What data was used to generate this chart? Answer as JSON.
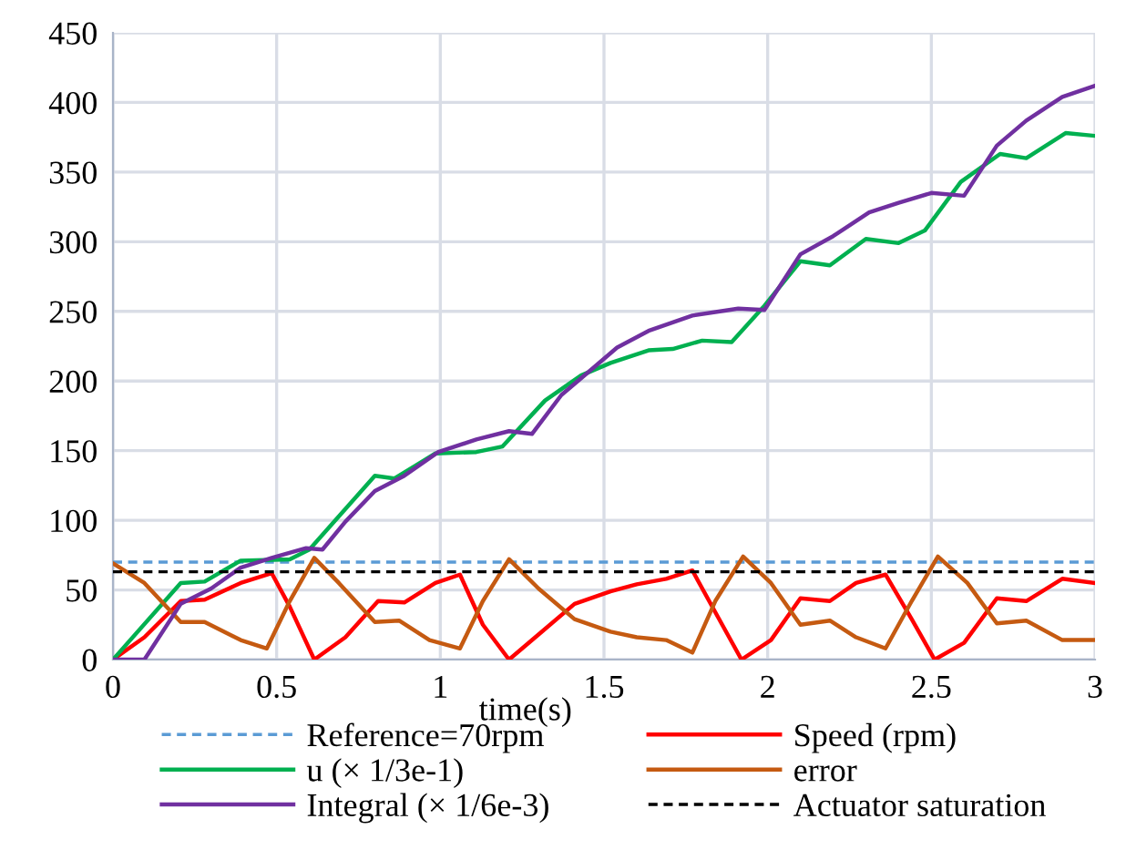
{
  "chart_data": {
    "type": "line",
    "xlabel": "time(s)",
    "xlim": [
      0,
      3
    ],
    "xticks": [
      0,
      0.5,
      1,
      1.5,
      2,
      2.5,
      3
    ],
    "ylim": [
      0,
      450
    ],
    "yticks": [
      0,
      50,
      100,
      150,
      200,
      250,
      300,
      350,
      400,
      450
    ],
    "grid": true,
    "legend": "bottom",
    "marker": "none",
    "series": [
      {
        "name": "Reference=70rpm",
        "color": "#5b9bd5",
        "line_style": "dashed",
        "x": [
          0,
          3
        ],
        "values": [
          70,
          70
        ]
      },
      {
        "name": "Speed (rpm)",
        "color": "#ff0000",
        "line_style": "solid",
        "x": [
          0,
          0.096,
          0.207,
          0.28,
          0.39,
          0.485,
          0.54,
          0.615,
          0.71,
          0.81,
          0.89,
          0.985,
          1.06,
          1.13,
          1.21,
          1.3,
          1.41,
          1.52,
          1.6,
          1.69,
          1.77,
          1.84,
          1.92,
          2.01,
          2.1,
          2.19,
          2.27,
          2.36,
          2.44,
          2.51,
          2.6,
          2.7,
          2.79,
          2.9,
          3.0
        ],
        "values": [
          0,
          16,
          42,
          43,
          55,
          62,
          38,
          0,
          16,
          42,
          41,
          55,
          61,
          25,
          0,
          18,
          40,
          49,
          54,
          58,
          64,
          34,
          0,
          14,
          44,
          42,
          55,
          61,
          29,
          0,
          12,
          44,
          42,
          58,
          55
        ]
      },
      {
        "name": "u (× 1/3e-1)",
        "color": "#00b050",
        "line_style": "solid",
        "x": [
          0,
          0.207,
          0.28,
          0.39,
          0.54,
          0.6,
          0.8,
          0.86,
          0.985,
          1.11,
          1.19,
          1.32,
          1.43,
          1.52,
          1.636,
          1.71,
          1.8,
          1.89,
          1.99,
          2.1,
          2.19,
          2.3,
          2.4,
          2.48,
          2.59,
          2.71,
          2.79,
          2.91,
          3.0
        ],
        "values": [
          0,
          55,
          56,
          71,
          72,
          79,
          132,
          130,
          148,
          149,
          153,
          186,
          204,
          213,
          222,
          223,
          229,
          228,
          254,
          286,
          283,
          302,
          299,
          308,
          343,
          363,
          360,
          378,
          376
        ]
      },
      {
        "name": "error",
        "color": "#c55a11",
        "line_style": "solid",
        "x": [
          0,
          0.096,
          0.207,
          0.28,
          0.39,
          0.47,
          0.54,
          0.615,
          0.69,
          0.8,
          0.874,
          0.967,
          1.06,
          1.13,
          1.21,
          1.3,
          1.41,
          1.52,
          1.6,
          1.69,
          1.77,
          1.84,
          1.925,
          2.01,
          2.1,
          2.19,
          2.27,
          2.36,
          2.44,
          2.52,
          2.61,
          2.7,
          2.79,
          2.9,
          3.0
        ],
        "values": [
          69,
          55,
          27,
          27,
          14,
          8,
          42,
          73,
          55,
          27,
          28,
          14,
          8,
          42,
          72,
          51,
          29,
          20,
          16,
          14,
          5,
          42,
          74,
          55,
          25,
          28,
          16,
          8,
          42,
          74,
          55,
          26,
          28,
          14,
          14
        ]
      },
      {
        "name": "Integral (× 1/6e-3)",
        "color": "#7030a0",
        "line_style": "solid",
        "x": [
          0,
          0.096,
          0.207,
          0.3,
          0.39,
          0.485,
          0.59,
          0.64,
          0.71,
          0.8,
          0.89,
          0.994,
          1.11,
          1.21,
          1.28,
          1.37,
          1.47,
          1.54,
          1.636,
          1.77,
          1.91,
          1.99,
          2.1,
          2.2,
          2.31,
          2.4,
          2.5,
          2.6,
          2.7,
          2.79,
          2.9,
          3.0
        ],
        "values": [
          0,
          0,
          40,
          51,
          66,
          73,
          80,
          79,
          99,
          121,
          132,
          149,
          158,
          164,
          162,
          190,
          210,
          224,
          236,
          247,
          252,
          251,
          291,
          304,
          321,
          328,
          335,
          333,
          369,
          387,
          404,
          412
        ]
      },
      {
        "name": "Actuator saturation",
        "color": "#000000",
        "line_style": "dashed",
        "x": [
          0,
          3
        ],
        "values": [
          63,
          63
        ]
      }
    ]
  }
}
